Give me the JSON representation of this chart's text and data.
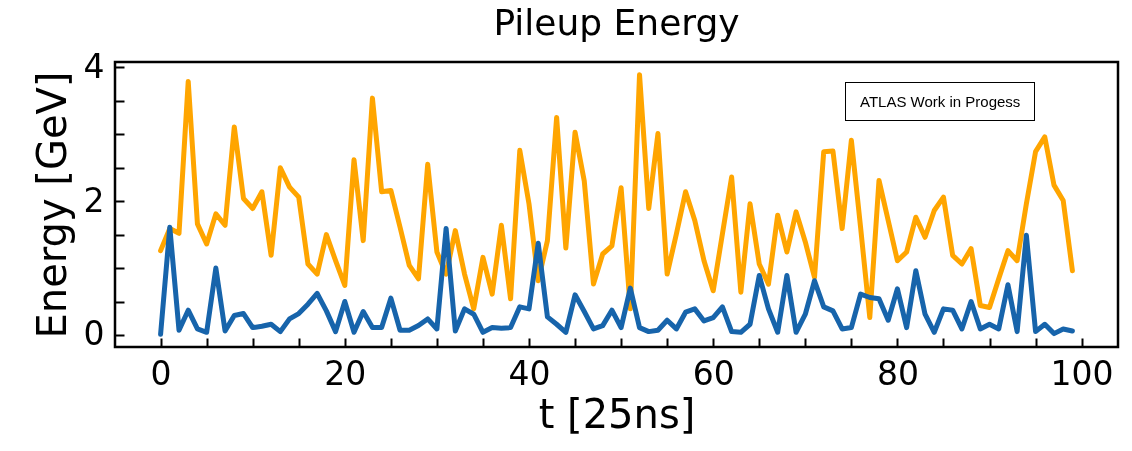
{
  "chart_data": {
    "type": "line",
    "title": "Pileup Energy",
    "xlabel": "t [25ns]",
    "ylabel": "Energy [GeV]",
    "annotations": [
      "ATLAS Work in Progess"
    ],
    "x": [
      0,
      1,
      2,
      3,
      4,
      5,
      6,
      7,
      8,
      9,
      10,
      11,
      12,
      13,
      14,
      15,
      16,
      17,
      18,
      19,
      20,
      21,
      22,
      23,
      24,
      25,
      26,
      27,
      28,
      29,
      30,
      31,
      32,
      33,
      34,
      35,
      36,
      37,
      38,
      39,
      40,
      41,
      42,
      43,
      44,
      45,
      46,
      47,
      48,
      49,
      50,
      51,
      52,
      53,
      54,
      55,
      56,
      57,
      58,
      59,
      60,
      61,
      62,
      63,
      64,
      65,
      66,
      67,
      68,
      69,
      70,
      71,
      72,
      73,
      74,
      75,
      76,
      77,
      78,
      79,
      80,
      81,
      82,
      83,
      84,
      85,
      86,
      87,
      88,
      89,
      90,
      91,
      92,
      93,
      94,
      95,
      96,
      97,
      98,
      99
    ],
    "series": [
      {
        "color": "#ffa500",
        "values": [
          1.26,
          1.59,
          1.52,
          3.79,
          1.66,
          1.36,
          1.81,
          1.64,
          3.11,
          2.04,
          1.89,
          2.14,
          1.19,
          2.5,
          2.21,
          2.06,
          1.06,
          0.91,
          1.5,
          1.11,
          0.74,
          2.62,
          1.41,
          3.54,
          2.14,
          2.16,
          1.61,
          1.04,
          0.84,
          2.55,
          1.24,
          0.91,
          1.56,
          0.91,
          0.39,
          1.16,
          0.61,
          1.64,
          0.54,
          2.76,
          1.96,
          0.81,
          1.41,
          3.25,
          1.3,
          3.03,
          2.3,
          0.76,
          1.21,
          1.33,
          2.2,
          0.39,
          3.89,
          1.89,
          3.01,
          0.91,
          1.51,
          2.14,
          1.71,
          1.11,
          0.66,
          1.51,
          2.36,
          0.64,
          1.96,
          1.06,
          0.76,
          1.79,
          1.24,
          1.84,
          1.39,
          0.86,
          2.74,
          2.75,
          1.59,
          2.91,
          1.61,
          0.26,
          2.31,
          1.71,
          1.11,
          1.24,
          1.76,
          1.46,
          1.86,
          2.06,
          1.19,
          1.06,
          1.29,
          0.44,
          0.41,
          0.84,
          1.26,
          1.11,
          1.96,
          2.74,
          2.96,
          2.24,
          2.01,
          0.96
        ]
      },
      {
        "color": "#1764ab",
        "values": [
          0.01,
          1.61,
          0.07,
          0.37,
          0.09,
          0.04,
          1.0,
          0.06,
          0.29,
          0.32,
          0.11,
          0.13,
          0.16,
          0.05,
          0.24,
          0.32,
          0.46,
          0.62,
          0.36,
          0.05,
          0.5,
          0.04,
          0.35,
          0.11,
          0.11,
          0.55,
          0.07,
          0.07,
          0.14,
          0.24,
          0.09,
          1.59,
          0.06,
          0.39,
          0.31,
          0.04,
          0.11,
          0.1,
          0.11,
          0.42,
          0.39,
          1.37,
          0.27,
          0.16,
          0.04,
          0.6,
          0.35,
          0.09,
          0.14,
          0.37,
          0.11,
          0.7,
          0.11,
          0.05,
          0.07,
          0.22,
          0.09,
          0.34,
          0.39,
          0.21,
          0.26,
          0.42,
          0.05,
          0.04,
          0.16,
          0.89,
          0.39,
          0.04,
          0.89,
          0.04,
          0.31,
          0.81,
          0.42,
          0.36,
          0.09,
          0.11,
          0.61,
          0.56,
          0.54,
          0.22,
          0.69,
          0.11,
          0.96,
          0.31,
          0.04,
          0.39,
          0.37,
          0.09,
          0.5,
          0.09,
          0.16,
          0.09,
          0.75,
          0.05,
          1.49,
          0.05,
          0.16,
          0.02,
          0.09,
          0.06
        ]
      }
    ],
    "xlim": [
      -4.95,
      103.95
    ],
    "xticks": [
      0,
      {
        "value": 5,
        "label": null
      },
      {
        "value": 10,
        "label": null
      },
      {
        "value": 15,
        "label": null
      },
      20,
      {
        "value": 25,
        "label": null
      },
      {
        "value": 30,
        "label": null
      },
      {
        "value": 35,
        "label": null
      },
      40,
      {
        "value": 45,
        "label": null
      },
      {
        "value": 50,
        "label": null
      },
      {
        "value": 55,
        "label": null
      },
      60,
      {
        "value": 65,
        "label": null
      },
      {
        "value": 70,
        "label": null
      },
      {
        "value": 75,
        "label": null
      },
      80,
      {
        "value": 85,
        "label": null
      },
      {
        "value": 90,
        "label": null
      },
      {
        "value": 95,
        "label": null
      },
      100
    ],
    "ylim": [
      -0.18,
      4.08
    ],
    "yticks": [
      0,
      {
        "value": 0.5,
        "label": null
      },
      {
        "value": 1,
        "label": null
      },
      {
        "value": 1.5,
        "label": null
      },
      2,
      {
        "value": 2.5,
        "label": null
      },
      {
        "value": 3,
        "label": null
      },
      {
        "value": 3.5,
        "label": null
      },
      4
    ],
    "line_style": "solid",
    "marker": "none"
  }
}
